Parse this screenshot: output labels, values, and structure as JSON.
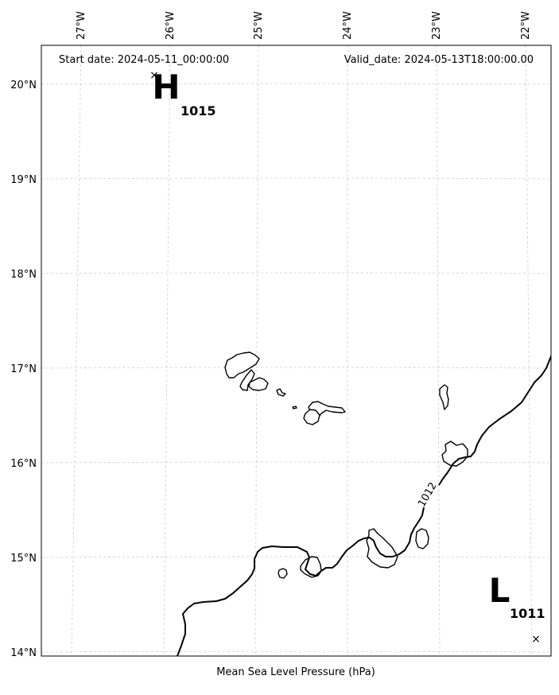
{
  "header": {
    "start_date": "Start date: 2024-05-11_00:00:00",
    "valid_date": "Valid_date: 2024-05-13T18:00:00.00"
  },
  "axes": {
    "xlabel": "Mean Sea Level Pressure (hPa)",
    "lon_ticks": [
      "27°W",
      "26°W",
      "25°W",
      "24°W",
      "23°W",
      "22°W"
    ],
    "lat_ticks": [
      "20°N",
      "19°N",
      "18°N",
      "17°N",
      "16°N",
      "15°N",
      "14°N"
    ],
    "lon_range": [
      -27.35,
      -21.75
    ],
    "lat_range": [
      13.95,
      20.4
    ]
  },
  "pressure_centers": [
    {
      "type": "high",
      "letter": "H",
      "value": "1015",
      "marker": "×"
    },
    {
      "type": "low",
      "letter": "L",
      "value": "1011",
      "marker": "×"
    }
  ],
  "isobars": [
    {
      "value": "1012",
      "label": "1012"
    }
  ],
  "colors": {
    "coastline": "#000000",
    "isobar": "#000000",
    "grid": "#cccccc",
    "background": "#ffffff"
  }
}
